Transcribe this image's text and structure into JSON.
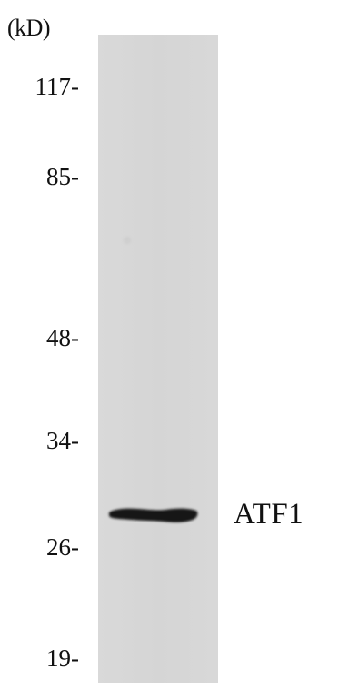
{
  "blot": {
    "unit_label": "(kD)",
    "markers": [
      "117-",
      "85-",
      "48-",
      "34-",
      "26-",
      "19-"
    ],
    "lane_color": "#d7d7d7",
    "band_color": "#141414",
    "target_label": "ATF1"
  }
}
